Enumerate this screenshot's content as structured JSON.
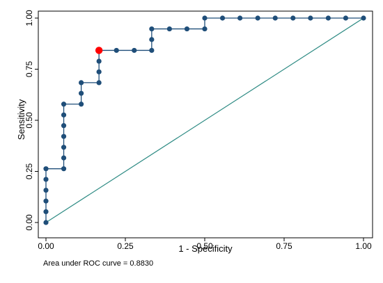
{
  "chart_data": {
    "type": "line",
    "title": "",
    "xlabel": "1 - Specificity",
    "ylabel": "Sensitivity",
    "xlim": [
      0,
      1
    ],
    "ylim": [
      0,
      1
    ],
    "x_ticks": [
      "0.00",
      "0.25",
      "0.50",
      "0.75",
      "1.00"
    ],
    "y_ticks": [
      "0.00",
      "0.25",
      "0.50",
      "0.75",
      "1.00"
    ],
    "grid": false,
    "note": "Area under ROC curve = 0.8830",
    "colors": {
      "curve": "#1f4e79",
      "marker": "#1f4e79",
      "reference": "#2e8b84",
      "highlight": "#ff0000",
      "plot_bg": "#ffffff",
      "outer_bg": "#ffffff"
    },
    "series": [
      {
        "points": [
          [
            0.0,
            0.0
          ],
          [
            0.0,
            0.053
          ],
          [
            0.0,
            0.105
          ],
          [
            0.0,
            0.158
          ],
          [
            0.0,
            0.211
          ],
          [
            0.0,
            0.263
          ],
          [
            0.056,
            0.263
          ],
          [
            0.056,
            0.316
          ],
          [
            0.056,
            0.368
          ],
          [
            0.056,
            0.421
          ],
          [
            0.056,
            0.474
          ],
          [
            0.056,
            0.526
          ],
          [
            0.056,
            0.579
          ],
          [
            0.111,
            0.579
          ],
          [
            0.111,
            0.632
          ],
          [
            0.111,
            0.684
          ],
          [
            0.167,
            0.684
          ],
          [
            0.167,
            0.737
          ],
          [
            0.167,
            0.789
          ],
          [
            0.167,
            0.842
          ],
          [
            0.222,
            0.842
          ],
          [
            0.278,
            0.842
          ],
          [
            0.333,
            0.842
          ],
          [
            0.333,
            0.895
          ],
          [
            0.333,
            0.947
          ],
          [
            0.389,
            0.947
          ],
          [
            0.444,
            0.947
          ],
          [
            0.5,
            0.947
          ],
          [
            0.5,
            1.0
          ],
          [
            0.556,
            1.0
          ],
          [
            0.611,
            1.0
          ],
          [
            0.667,
            1.0
          ],
          [
            0.722,
            1.0
          ],
          [
            0.778,
            1.0
          ],
          [
            0.833,
            1.0
          ],
          [
            0.889,
            1.0
          ],
          [
            0.944,
            1.0
          ],
          [
            1.0,
            1.0
          ]
        ]
      },
      {
        "points": [
          [
            0,
            0
          ],
          [
            1,
            1
          ]
        ]
      }
    ],
    "highlight_point": [
      0.167,
      0.842
    ]
  }
}
